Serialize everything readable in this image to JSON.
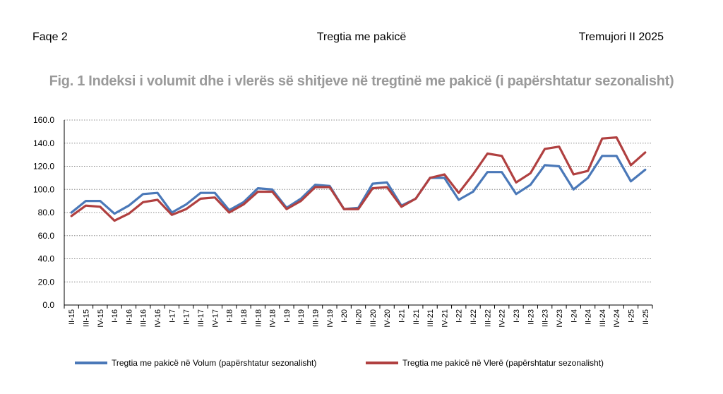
{
  "header": {
    "left": "Faqe 2",
    "center": "Tregtia me pakicë",
    "right": "Tremujori II 2025"
  },
  "figure_title": "Fig. 1 Indeksi i volumit dhe i vlerës së shitjeve në tregtinë me pakicë (i papërshtatur sezonalisht)",
  "chart_data": {
    "type": "line",
    "title": "Fig. 1 Indeksi i volumit dhe i vlerës së shitjeve në tregtinë me pakicë (i papërshtatur sezonalisht)",
    "xlabel": "",
    "ylabel": "",
    "ylim": [
      0,
      160
    ],
    "yticks": [
      "0.0",
      "20.0",
      "40.0",
      "60.0",
      "80.0",
      "100.0",
      "120.0",
      "140.0",
      "160.0"
    ],
    "grid": true,
    "legend_position": "bottom",
    "categories": [
      "II-15",
      "III-15",
      "IV-15",
      "I-16",
      "II-16",
      "III-16",
      "IV-16",
      "I-17",
      "II-17",
      "III-17",
      "IV-17",
      "I-18",
      "II-18",
      "III-18",
      "IV-18",
      "I-19",
      "II-19",
      "III-19",
      "IV-19",
      "I-20",
      "II-20",
      "III-20",
      "IV-20",
      "I-21",
      "II-21",
      "III-21",
      "IV-21",
      "I-22",
      "II-22",
      "III-22",
      "IV-22",
      "I-23",
      "II-23",
      "III-23",
      "IV-23",
      "I-24",
      "II-24",
      "III-24",
      "IV-24",
      "I-25",
      "II-25"
    ],
    "series": [
      {
        "name": "Tregtia me pakicë në Volum (papërshtatur sezonalisht)",
        "color": "#4a78b8",
        "values": [
          80,
          90,
          90,
          79,
          86,
          96,
          97,
          80,
          87,
          97,
          97,
          82,
          89,
          101,
          100,
          84,
          92,
          104,
          103,
          83,
          84,
          105,
          106,
          86,
          92,
          110,
          110,
          91,
          98,
          115,
          115,
          96,
          104,
          121,
          120,
          100,
          110,
          129,
          129,
          107,
          117
        ]
      },
      {
        "name": "Tregtia me pakicë në Vlerë (papërshtatur sezonalisht)",
        "color": "#b04040",
        "values": [
          77,
          86,
          85,
          73,
          79,
          89,
          91,
          78,
          83,
          92,
          93,
          80,
          87,
          98,
          98,
          83,
          90,
          102,
          102,
          83,
          83,
          101,
          102,
          85,
          92,
          110,
          113,
          97,
          113,
          131,
          129,
          106,
          114,
          135,
          137,
          113,
          116,
          144,
          145,
          121,
          132
        ]
      }
    ]
  }
}
